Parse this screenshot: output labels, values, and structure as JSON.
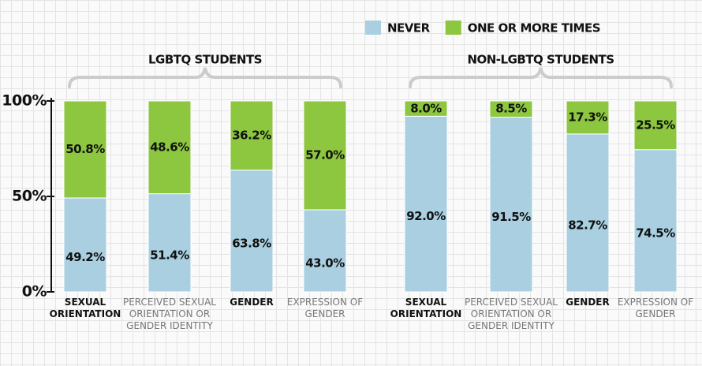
{
  "chart_data": {
    "type": "stacked_bar",
    "groups": [
      "LGBTQ STUDENTS",
      "NON-LGBTQ STUDENTS"
    ],
    "categories": [
      "SEXUAL ORIENTATION",
      "PERCEIVED SEXUAL ORIENTATION OR GENDER IDENTITY",
      "GENDER",
      "EXPRESSION OF GENDER",
      "SEXUAL ORIENTATION",
      "PERCEIVED SEXUAL ORIENTATION OR GENDER IDENTITY",
      "GENDER",
      "EXPRESSION OF GENDER"
    ],
    "series": [
      {
        "name": "NEVER",
        "color": "#a9cfe1",
        "values": [
          49.2,
          51.4,
          63.8,
          43.0,
          92.0,
          91.5,
          82.7,
          74.5
        ],
        "value_labels": [
          "49.2%",
          "51.4%",
          "63.8%",
          "43.0%",
          "92.0%",
          "91.5%",
          "82.7%",
          "74.5%"
        ]
      },
      {
        "name": "ONE OR MORE TIMES",
        "color": "#8dc63f",
        "values": [
          50.8,
          48.6,
          36.2,
          57.0,
          8.0,
          8.5,
          17.3,
          25.5
        ],
        "value_labels": [
          "50.8%",
          "48.6%",
          "36.2%",
          "57.0%",
          "8.0%",
          "8.5%",
          "17.3%",
          "25.5%"
        ]
      }
    ],
    "ylim": [
      0,
      100
    ],
    "yticks": [
      {
        "value": 0,
        "label": "0%"
      },
      {
        "value": 50,
        "label": "50%"
      },
      {
        "value": 100,
        "label": "100%"
      }
    ],
    "legend": "top-right"
  }
}
